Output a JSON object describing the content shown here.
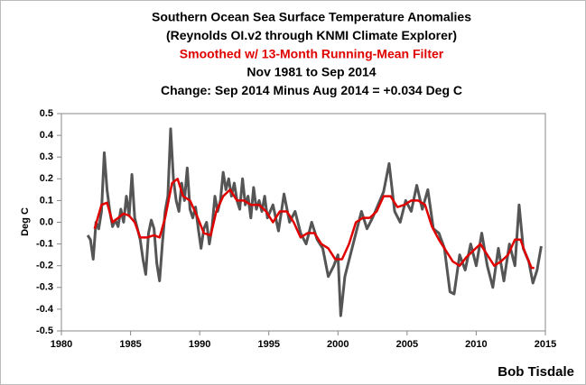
{
  "chart_data": {
    "type": "line",
    "title_lines": [
      "Southern Ocean Sea Surface Temperature Anomalies",
      "(Reynolds OI.v2 through KNMI Climate Explorer)",
      "Smoothed w/ 13-Month Running-Mean Filter",
      "Nov 1981 to Sep 2014",
      "Change: Sep 2014 Minus Aug 2014 = +0.034 Deg C"
    ],
    "title_colors": [
      "#000000",
      "#000000",
      "#e00000",
      "#000000",
      "#000000"
    ],
    "ylabel": "Deg C",
    "credit": "Bob Tisdale",
    "xlim": [
      1980,
      2015
    ],
    "xticks": [
      1980,
      1985,
      1990,
      1995,
      2000,
      2005,
      2010,
      2015
    ],
    "ylim": [
      -0.5,
      0.5
    ],
    "yticks": [
      0.5,
      0.4,
      0.3,
      0.2,
      0.1,
      {
        "value": 0,
        "label": "0.0"
      },
      -0.1,
      -0.2,
      -0.3,
      -0.4,
      -0.5
    ],
    "grid": false,
    "series": [
      {
        "color": "#555555",
        "width": 3,
        "x": [
          1981.9,
          1982.1,
          1982.3,
          1982.5,
          1982.7,
          1982.9,
          1983.1,
          1983.3,
          1983.5,
          1983.7,
          1983.9,
          1984.1,
          1984.3,
          1984.5,
          1984.7,
          1984.9,
          1985.1,
          1985.3,
          1985.5,
          1985.7,
          1985.9,
          1986.1,
          1986.3,
          1986.5,
          1986.7,
          1986.9,
          1987.1,
          1987.3,
          1987.5,
          1987.7,
          1987.9,
          1988.1,
          1988.3,
          1988.5,
          1988.7,
          1988.9,
          1989.1,
          1989.3,
          1989.5,
          1989.7,
          1989.9,
          1990.1,
          1990.3,
          1990.5,
          1990.7,
          1990.9,
          1991.1,
          1991.3,
          1991.5,
          1991.7,
          1991.9,
          1992.1,
          1992.3,
          1992.5,
          1992.7,
          1992.9,
          1993.1,
          1993.3,
          1993.5,
          1993.7,
          1993.9,
          1994.1,
          1994.3,
          1994.5,
          1994.7,
          1994.9,
          1995.3,
          1995.7,
          1996.1,
          1996.5,
          1996.9,
          1997.3,
          1997.7,
          1998.1,
          1998.5,
          1998.9,
          1999.3,
          1999.7,
          2000.0,
          2000.2,
          2000.5,
          2000.9,
          2001.3,
          2001.7,
          2002.1,
          2002.5,
          2002.9,
          2003.3,
          2003.7,
          2004.1,
          2004.5,
          2004.9,
          2005.3,
          2005.7,
          2006.1,
          2006.5,
          2006.9,
          2007.3,
          2007.7,
          2008.1,
          2008.4,
          2008.8,
          2009.2,
          2009.6,
          2010.0,
          2010.4,
          2010.8,
          2011.2,
          2011.6,
          2012.0,
          2012.4,
          2012.8,
          2013.1,
          2013.4,
          2013.8,
          2014.1,
          2014.4,
          2014.7
        ],
        "values": [
          -0.06,
          -0.08,
          -0.17,
          0.0,
          -0.03,
          0.05,
          0.32,
          0.15,
          0.05,
          -0.02,
          0.01,
          -0.02,
          0.06,
          0.0,
          0.12,
          0.03,
          0.22,
          0.02,
          -0.03,
          -0.08,
          -0.17,
          -0.24,
          -0.05,
          0.01,
          -0.03,
          -0.19,
          -0.27,
          -0.1,
          0.05,
          0.12,
          0.43,
          0.2,
          0.1,
          0.05,
          0.18,
          0.1,
          0.25,
          0.06,
          0.02,
          0.07,
          -0.03,
          -0.12,
          -0.03,
          0.0,
          -0.1,
          -0.02,
          0.12,
          0.05,
          0.1,
          0.23,
          0.15,
          0.2,
          0.12,
          0.18,
          0.1,
          0.06,
          0.2,
          0.08,
          0.12,
          0.02,
          0.16,
          0.06,
          0.1,
          0.05,
          0.12,
          0.02,
          0.08,
          -0.04,
          0.13,
          0.0,
          0.05,
          -0.05,
          -0.1,
          0.0,
          -0.08,
          -0.12,
          -0.25,
          -0.2,
          -0.15,
          -0.43,
          -0.25,
          -0.15,
          -0.05,
          0.05,
          -0.03,
          0.02,
          0.08,
          0.14,
          0.27,
          0.05,
          0.0,
          0.1,
          0.05,
          0.17,
          0.06,
          0.15,
          -0.03,
          -0.05,
          -0.12,
          -0.32,
          -0.33,
          -0.15,
          -0.22,
          -0.1,
          -0.2,
          -0.05,
          -0.2,
          -0.3,
          -0.12,
          -0.27,
          -0.1,
          -0.2,
          0.08,
          -0.12,
          -0.18,
          -0.28,
          -0.22,
          -0.11
        ]
      },
      {
        "color": "#e00000",
        "width": 2.5,
        "x": [
          1982.4,
          1982.9,
          1983.3,
          1983.7,
          1984.1,
          1984.5,
          1984.9,
          1985.3,
          1985.7,
          1986.2,
          1986.7,
          1987.1,
          1987.5,
          1988.0,
          1988.4,
          1988.8,
          1989.3,
          1989.8,
          1990.3,
          1990.8,
          1991.2,
          1991.7,
          1992.2,
          1992.7,
          1993.2,
          1993.7,
          1994.3,
          1994.8,
          1995.3,
          1995.8,
          1996.3,
          1996.8,
          1997.3,
          1997.8,
          1998.3,
          1998.8,
          1999.3,
          1999.8,
          2000.3,
          2000.8,
          2001.3,
          2001.8,
          2002.3,
          2002.8,
          2003.3,
          2003.8,
          2004.3,
          2004.8,
          2005.3,
          2005.8,
          2006.3,
          2006.8,
          2007.3,
          2007.8,
          2008.3,
          2008.8,
          2009.3,
          2009.8,
          2010.3,
          2010.8,
          2011.3,
          2011.8,
          2012.3,
          2012.8,
          2013.2,
          2013.6,
          2014.0,
          2014.2
        ],
        "values": [
          -0.03,
          0.08,
          0.09,
          0.0,
          0.02,
          0.04,
          0.03,
          0.0,
          -0.07,
          -0.07,
          -0.06,
          -0.07,
          0.02,
          0.18,
          0.2,
          0.12,
          0.1,
          0.03,
          -0.05,
          -0.06,
          0.05,
          0.12,
          0.15,
          0.1,
          0.1,
          0.08,
          0.08,
          0.05,
          0.0,
          0.05,
          0.05,
          0.0,
          -0.07,
          -0.05,
          -0.05,
          -0.1,
          -0.12,
          -0.17,
          -0.17,
          -0.1,
          0.0,
          0.02,
          0.02,
          0.05,
          0.12,
          0.12,
          0.07,
          0.08,
          0.1,
          0.1,
          0.08,
          -0.02,
          -0.08,
          -0.13,
          -0.18,
          -0.2,
          -0.16,
          -0.13,
          -0.1,
          -0.15,
          -0.2,
          -0.18,
          -0.15,
          -0.08,
          -0.08,
          -0.15,
          -0.21,
          -0.21
        ]
      }
    ]
  }
}
